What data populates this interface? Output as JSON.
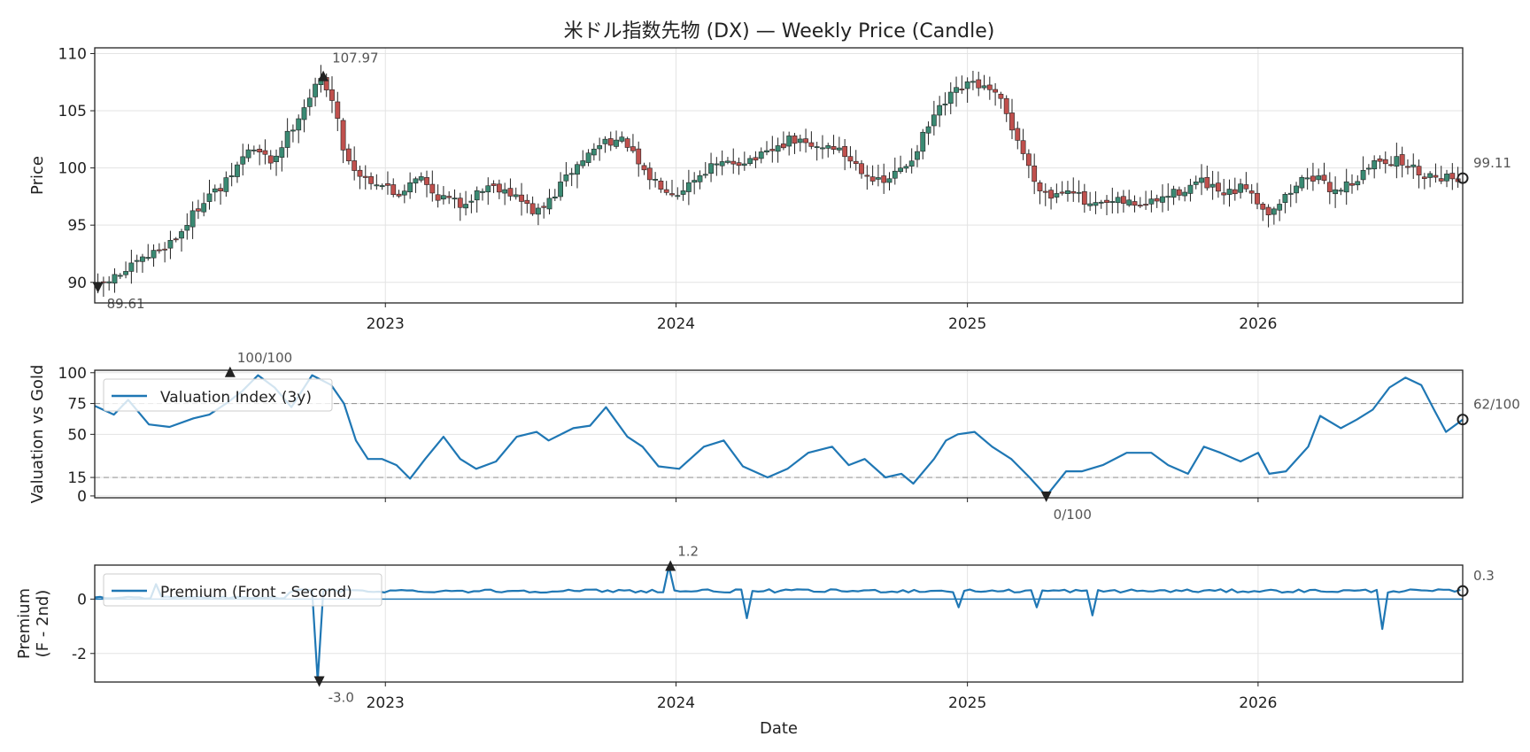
{
  "chart_data": [
    {
      "type": "candlestick",
      "title": "米ドル指数先物 (DX) — Weekly Price (Candle)",
      "ylabel": "Price",
      "ylim": [
        88.2,
        110.5
      ],
      "yticks": [
        90,
        95,
        100,
        105,
        110
      ],
      "xlim": [
        "2022-01-01",
        "2026-09-15"
      ],
      "xticks": [
        {
          "date": "2023-01-01",
          "label": "2023"
        },
        {
          "date": "2024-01-01",
          "label": "2024"
        },
        {
          "date": "2025-01-01",
          "label": "2025"
        },
        {
          "date": "2026-01-01",
          "label": "2026"
        }
      ],
      "grid": true,
      "colors": {
        "up": "#3a8a73",
        "down": "#c0504d",
        "wick": "#222222"
      },
      "close_anchors": [
        [
          "2022-01-05",
          89.61
        ],
        [
          "2022-02-10",
          91.0
        ],
        [
          "2022-03-10",
          92.3
        ],
        [
          "2022-04-15",
          94.0
        ],
        [
          "2022-05-20",
          97.5
        ],
        [
          "2022-06-10",
          98.2
        ],
        [
          "2022-07-15",
          101.8
        ],
        [
          "2022-08-12",
          100.5
        ],
        [
          "2022-09-05",
          103.5
        ],
        [
          "2022-09-30",
          106.5
        ],
        [
          "2022-10-15",
          107.97
        ],
        [
          "2022-10-28",
          105.5
        ],
        [
          "2022-11-12",
          101.0
        ],
        [
          "2022-12-01",
          99.3
        ],
        [
          "2022-12-31",
          98.5
        ],
        [
          "2023-01-15",
          97.5
        ],
        [
          "2023-02-10",
          99.5
        ],
        [
          "2023-03-01",
          97.8
        ],
        [
          "2023-04-05",
          96.8
        ],
        [
          "2023-05-10",
          98.5
        ],
        [
          "2023-06-01",
          98.2
        ],
        [
          "2023-07-10",
          96.0
        ],
        [
          "2023-07-25",
          97.0
        ],
        [
          "2023-08-20",
          99.5
        ],
        [
          "2023-09-10",
          101.0
        ],
        [
          "2023-10-05",
          102.5
        ],
        [
          "2023-10-31",
          102.2
        ],
        [
          "2023-11-20",
          99.5
        ],
        [
          "2024-01-01",
          97.8
        ],
        [
          "2024-02-10",
          100.0
        ],
        [
          "2024-03-15",
          100.5
        ],
        [
          "2024-04-20",
          101.0
        ],
        [
          "2024-05-25",
          102.5
        ],
        [
          "2024-06-20",
          101.8
        ],
        [
          "2024-07-15",
          102.0
        ],
        [
          "2024-08-20",
          100.0
        ],
        [
          "2024-09-15",
          98.5
        ],
        [
          "2024-10-20",
          100.5
        ],
        [
          "2024-11-20",
          104.5
        ],
        [
          "2024-12-15",
          106.5
        ],
        [
          "2025-01-10",
          107.5
        ],
        [
          "2025-02-10",
          106.0
        ],
        [
          "2025-03-05",
          102.5
        ],
        [
          "2025-03-25",
          99.0
        ],
        [
          "2025-04-15",
          97.5
        ],
        [
          "2025-05-10",
          98.5
        ],
        [
          "2025-06-01",
          96.5
        ],
        [
          "2025-07-10",
          97.0
        ],
        [
          "2025-08-15",
          96.8
        ],
        [
          "2025-09-25",
          98.0
        ],
        [
          "2025-10-20",
          98.8
        ],
        [
          "2025-11-20",
          97.5
        ],
        [
          "2025-12-20",
          98.5
        ],
        [
          "2026-01-10",
          96.0
        ],
        [
          "2026-02-05",
          97.5
        ],
        [
          "2026-03-05",
          99.5
        ],
        [
          "2026-04-05",
          98.0
        ],
        [
          "2026-05-05",
          99.0
        ],
        [
          "2026-06-01",
          100.8
        ],
        [
          "2026-07-01",
          100.5
        ],
        [
          "2026-07-25",
          99.5
        ],
        [
          "2026-09-10",
          99.11
        ]
      ],
      "annotations": [
        {
          "date": "2022-10-15",
          "value": 107.97,
          "label": "107.97",
          "marker": "up"
        },
        {
          "date": "2022-01-05",
          "value": 89.61,
          "label": "89.61",
          "marker": "down"
        },
        {
          "date": "2026-09-15",
          "value": 99.11,
          "label": "99.11",
          "marker": "circle"
        }
      ]
    },
    {
      "type": "line",
      "ylabel": "Valuation vs Gold",
      "ylim": [
        -1.5,
        102
      ],
      "yticks": [
        0,
        15,
        50,
        75,
        100
      ],
      "reference_lines": [
        15,
        75
      ],
      "legend": {
        "label": "Valuation Index (3y)",
        "location": "upper-left"
      },
      "color": "#1f77b4",
      "series_points": [
        [
          "2022-01-01",
          73
        ],
        [
          "2022-01-25",
          66
        ],
        [
          "2022-02-12",
          78
        ],
        [
          "2022-03-10",
          58
        ],
        [
          "2022-04-05",
          56
        ],
        [
          "2022-05-05",
          63
        ],
        [
          "2022-05-25",
          66
        ],
        [
          "2022-06-15",
          75
        ],
        [
          "2022-07-05",
          85
        ],
        [
          "2022-07-25",
          98
        ],
        [
          "2022-08-15",
          88
        ],
        [
          "2022-09-05",
          72
        ],
        [
          "2022-10-01",
          98
        ],
        [
          "2022-10-25",
          90
        ],
        [
          "2022-11-10",
          75
        ],
        [
          "2022-11-25",
          45
        ],
        [
          "2022-12-10",
          30
        ],
        [
          "2022-12-28",
          30
        ],
        [
          "2023-01-15",
          25
        ],
        [
          "2023-02-01",
          14
        ],
        [
          "2023-02-20",
          30
        ],
        [
          "2023-03-15",
          48
        ],
        [
          "2023-04-05",
          30
        ],
        [
          "2023-04-25",
          22
        ],
        [
          "2023-05-20",
          28
        ],
        [
          "2023-06-15",
          48
        ],
        [
          "2023-07-10",
          52
        ],
        [
          "2023-07-25",
          45
        ],
        [
          "2023-08-25",
          55
        ],
        [
          "2023-09-15",
          57
        ],
        [
          "2023-10-05",
          72
        ],
        [
          "2023-11-01",
          48
        ],
        [
          "2023-11-20",
          40
        ],
        [
          "2023-12-10",
          24
        ],
        [
          "2024-01-05",
          22
        ],
        [
          "2024-02-05",
          40
        ],
        [
          "2024-03-01",
          45
        ],
        [
          "2024-03-25",
          24
        ],
        [
          "2024-04-25",
          15
        ],
        [
          "2024-05-20",
          22
        ],
        [
          "2024-06-15",
          35
        ],
        [
          "2024-07-15",
          40
        ],
        [
          "2024-08-05",
          25
        ],
        [
          "2024-08-25",
          30
        ],
        [
          "2024-09-20",
          15
        ],
        [
          "2024-10-10",
          18
        ],
        [
          "2024-10-25",
          10
        ],
        [
          "2024-11-20",
          30
        ],
        [
          "2024-12-05",
          45
        ],
        [
          "2024-12-20",
          50
        ],
        [
          "2025-01-10",
          52
        ],
        [
          "2025-02-01",
          40
        ],
        [
          "2025-02-25",
          30
        ],
        [
          "2025-03-20",
          15
        ],
        [
          "2025-04-10",
          0
        ],
        [
          "2025-05-05",
          20
        ],
        [
          "2025-05-25",
          20
        ],
        [
          "2025-06-20",
          25
        ],
        [
          "2025-07-20",
          35
        ],
        [
          "2025-08-20",
          35
        ],
        [
          "2025-09-10",
          25
        ],
        [
          "2025-10-05",
          18
        ],
        [
          "2025-10-25",
          40
        ],
        [
          "2025-11-15",
          35
        ],
        [
          "2025-12-10",
          28
        ],
        [
          "2026-01-01",
          35
        ],
        [
          "2026-01-15",
          18
        ],
        [
          "2026-02-05",
          20
        ],
        [
          "2026-03-05",
          40
        ],
        [
          "2026-03-20",
          65
        ],
        [
          "2026-04-15",
          55
        ],
        [
          "2026-05-05",
          62
        ],
        [
          "2026-05-25",
          70
        ],
        [
          "2026-06-15",
          88
        ],
        [
          "2026-07-05",
          96
        ],
        [
          "2026-07-25",
          90
        ],
        [
          "2026-08-10",
          70
        ],
        [
          "2026-08-25",
          52
        ],
        [
          "2026-09-15",
          62
        ]
      ],
      "annotations": [
        {
          "date": "2022-06-20",
          "value": 100,
          "label": "100/100",
          "marker": "up"
        },
        {
          "date": "2025-04-10",
          "value": 0,
          "label": "0/100",
          "marker": "down"
        },
        {
          "date": "2026-09-15",
          "value": 62,
          "label": "62/100",
          "marker": "circle"
        }
      ]
    },
    {
      "type": "line",
      "xlabel": "Date",
      "ylabel": "Premium\n(F - 2nd)",
      "ylim": [
        -3.05,
        1.25
      ],
      "yticks": [
        -2,
        0
      ],
      "reference_lines": [
        0
      ],
      "legend": {
        "label": "Premium (Front - Second)",
        "location": "upper-left"
      },
      "color": "#1f77b4",
      "baseline_value": 0.3,
      "spikes": [
        {
          "date": "2022-03-20",
          "value": 0.55
        },
        {
          "date": "2022-10-10",
          "value": -3.0
        },
        {
          "date": "2023-12-25",
          "value": 1.2
        },
        {
          "date": "2024-03-30",
          "value": -0.7
        },
        {
          "date": "2024-12-20",
          "value": -0.3
        },
        {
          "date": "2025-04-01",
          "value": -0.3
        },
        {
          "date": "2025-06-10",
          "value": -0.6
        },
        {
          "date": "2026-06-05",
          "value": -1.1
        }
      ],
      "annotations": [
        {
          "date": "2023-12-25",
          "value": 1.2,
          "label": "1.2",
          "marker": "up"
        },
        {
          "date": "2022-10-10",
          "value": -3.0,
          "label": "-3.0",
          "marker": "down"
        },
        {
          "date": "2026-09-15",
          "value": 0.3,
          "label": "0.3",
          "marker": "circle"
        }
      ]
    }
  ]
}
